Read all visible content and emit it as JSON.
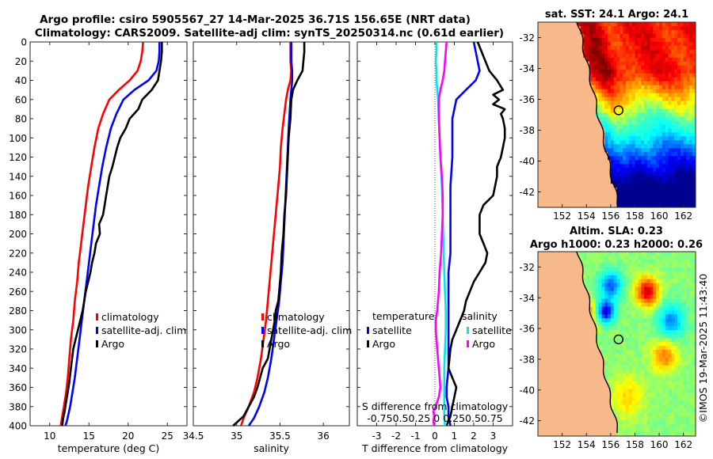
{
  "title": {
    "line1": "Argo profile: csiro 5905567_27 14-Mar-2025 36.71S 156.65E (NRT data)",
    "line2": "Climatology: CARS2009. Satellite-adj clim: synTS_20250314.nc (0.61d earlier)"
  },
  "side_label": "©IMOS 19-Mar-2025 11:43:40",
  "colors": {
    "climatology": "#ff0000",
    "satellite": "#0000ff",
    "argo": "#000000",
    "sat_salinity": "#00e5ee",
    "argo_salinity": "#ff00ff",
    "land": "#f7b98a"
  },
  "chart_data": [
    {
      "type": "line",
      "name": "temperature",
      "xlabel": "temperature (deg C)",
      "xlim": [
        7.5,
        27.5
      ],
      "xticks": [
        10,
        15,
        20,
        25
      ],
      "xtick_labels": [
        "10",
        "15",
        "20",
        "25"
      ],
      "ylim": [
        0,
        400
      ],
      "yticks": [
        0,
        20,
        40,
        60,
        80,
        100,
        120,
        140,
        160,
        180,
        200,
        220,
        240,
        260,
        280,
        300,
        320,
        340,
        360,
        380,
        400
      ],
      "legend": [
        "climatology",
        "satellite-adj. clim",
        "Argo"
      ],
      "series": [
        {
          "name": "climatology",
          "color": "#ff0000",
          "x": [
            21.9,
            21.8,
            21.6,
            21.2,
            20.2,
            18.8,
            17.6,
            16.8,
            16.2,
            15.7,
            15.3,
            14.9,
            14.6,
            14.3,
            14.0,
            13.7,
            13.5,
            13.2,
            13.0,
            12.7,
            12.5,
            12.3,
            12.1,
            11.8,
            11.6,
            11.4
          ],
          "y": [
            0,
            10,
            20,
            30,
            40,
            50,
            60,
            75,
            90,
            110,
            130,
            150,
            170,
            190,
            210,
            230,
            250,
            270,
            290,
            310,
            330,
            350,
            365,
            380,
            390,
            400
          ]
        },
        {
          "name": "satellite-adj. clim",
          "color": "#0000ff",
          "x": [
            24.0,
            24.0,
            23.9,
            23.6,
            22.6,
            20.8,
            19.4,
            18.5,
            17.8,
            17.2,
            16.7,
            16.3,
            15.9,
            15.6,
            15.3,
            15.0,
            14.7,
            14.4,
            14.1,
            13.8,
            13.5,
            13.2,
            12.9,
            12.6,
            12.2,
            12.0
          ],
          "y": [
            0,
            10,
            20,
            30,
            40,
            50,
            60,
            75,
            90,
            110,
            130,
            150,
            170,
            190,
            210,
            230,
            250,
            270,
            290,
            310,
            330,
            350,
            365,
            380,
            395,
            400
          ]
        },
        {
          "name": "Argo",
          "color": "#000000",
          "x": [
            24.3,
            24.3,
            24.2,
            24.0,
            23.8,
            23.0,
            21.8,
            21.3,
            20.2,
            19.7,
            19.0,
            18.6,
            18.3,
            18.0,
            17.6,
            17.4,
            17.2,
            17.0,
            16.8,
            16.3,
            16.4,
            15.9,
            15.7,
            15.4,
            15.2,
            14.9,
            14.6,
            14.4,
            14.2,
            13.9,
            13.6,
            13.3,
            13.0,
            12.7,
            12.5,
            12.3,
            12.1,
            11.9,
            11.7,
            11.6
          ],
          "y": [
            0,
            10,
            20,
            30,
            40,
            50,
            60,
            70,
            80,
            90,
            100,
            110,
            120,
            130,
            140,
            150,
            160,
            170,
            180,
            190,
            200,
            210,
            220,
            230,
            240,
            250,
            260,
            270,
            280,
            290,
            300,
            310,
            320,
            340,
            355,
            365,
            375,
            385,
            393,
            400
          ]
        }
      ]
    },
    {
      "type": "line",
      "name": "salinity",
      "xlabel": "salinity",
      "xlim": [
        34.5,
        36.3
      ],
      "xticks": [
        34.5,
        35,
        35.5,
        36
      ],
      "xtick_labels": [
        "34.5",
        "35",
        "35.5",
        "36"
      ],
      "ylim": [
        0,
        400
      ],
      "legend": [
        "climatology",
        "satellite-adj. clim",
        "Argo"
      ],
      "series": [
        {
          "name": "climatology",
          "color": "#ff0000",
          "x": [
            35.62,
            35.62,
            35.62,
            35.63,
            35.62,
            35.59,
            35.57,
            35.55,
            35.53,
            35.51,
            35.5,
            35.48,
            35.46,
            35.44,
            35.42,
            35.4,
            35.38,
            35.36,
            35.34,
            35.31,
            35.28,
            35.24,
            35.2,
            35.14,
            35.08,
            35.05
          ],
          "y": [
            0,
            10,
            20,
            30,
            40,
            50,
            60,
            75,
            90,
            110,
            130,
            150,
            170,
            190,
            210,
            230,
            250,
            270,
            290,
            310,
            330,
            350,
            365,
            380,
            392,
            400
          ]
        },
        {
          "name": "satellite-adj. clim",
          "color": "#0000ff",
          "x": [
            35.63,
            35.63,
            35.63,
            35.64,
            35.64,
            35.63,
            35.62,
            35.61,
            35.6,
            35.59,
            35.58,
            35.57,
            35.56,
            35.55,
            35.54,
            35.53,
            35.51,
            35.49,
            35.46,
            35.43,
            35.4,
            35.36,
            35.32,
            35.26,
            35.2,
            35.14
          ],
          "y": [
            0,
            10,
            20,
            30,
            40,
            50,
            60,
            75,
            90,
            110,
            130,
            150,
            170,
            190,
            210,
            230,
            250,
            270,
            290,
            310,
            330,
            350,
            365,
            380,
            392,
            400
          ]
        },
        {
          "name": "Argo",
          "color": "#000000",
          "x": [
            35.78,
            35.78,
            35.77,
            35.76,
            35.7,
            35.65,
            35.63,
            35.62,
            35.6,
            35.59,
            35.58,
            35.57,
            35.55,
            35.54,
            35.52,
            35.51,
            35.5,
            35.49,
            35.48,
            35.45,
            35.44,
            35.42,
            35.4,
            35.38,
            35.36,
            35.3,
            35.27,
            35.24,
            35.2,
            35.14,
            35.08,
            35.02,
            34.96
          ],
          "y": [
            0,
            10,
            20,
            30,
            40,
            50,
            60,
            80,
            100,
            120,
            140,
            160,
            180,
            200,
            220,
            240,
            250,
            260,
            270,
            280,
            290,
            300,
            310,
            320,
            330,
            340,
            350,
            360,
            370,
            380,
            390,
            395,
            400
          ]
        }
      ]
    },
    {
      "type": "line",
      "name": "difference from climatology",
      "xlabel": "T difference from climatology",
      "xlim": [
        -4,
        4
      ],
      "xticks": [
        -3,
        -2,
        -1,
        0,
        1,
        2,
        3
      ],
      "xtick_labels": [
        "-3",
        "-2",
        "-1",
        "0",
        "1",
        "2",
        "3"
      ],
      "secondary_xlabel": "S difference from climatology",
      "secondary_xtick_labels": "-0.750.50.25 0 0.250.50.75",
      "ylim": [
        0,
        400
      ],
      "legend_temperature_title": "temperature",
      "legend_salinity_title": "salinity",
      "legend_temperature": [
        "satellite",
        "Argo"
      ],
      "legend_salinity": [
        "satellite",
        "Argo"
      ],
      "series": [
        {
          "name": "T satellite",
          "color": "#0000ff",
          "x": [
            2.0,
            2.1,
            2.2,
            2.3,
            2.1,
            1.6,
            1.1,
            0.9,
            0.9,
            0.9,
            0.8,
            0.8,
            0.8,
            0.8,
            0.7,
            0.7,
            0.7,
            0.7,
            0.7,
            0.7,
            0.6,
            0.6,
            0.7,
            0.7,
            0.8
          ],
          "y": [
            0,
            10,
            20,
            30,
            40,
            50,
            60,
            80,
            100,
            120,
            150,
            180,
            200,
            220,
            240,
            260,
            280,
            300,
            320,
            340,
            360,
            370,
            380,
            390,
            400
          ]
        },
        {
          "name": "T Argo",
          "color": "#000000",
          "x": [
            2.2,
            2.4,
            2.6,
            2.8,
            3.2,
            3.5,
            3.0,
            3.3,
            3.0,
            3.6,
            3.4,
            3.5,
            3.6,
            3.6,
            3.5,
            3.4,
            3.2,
            3.2,
            3.1,
            3.0,
            2.5,
            2.3,
            2.3,
            2.3,
            2.5,
            2.7,
            2.6,
            2.3,
            2.0,
            1.8,
            1.6,
            1.5,
            1.3,
            1.1,
            0.9,
            0.8,
            0.7,
            0.9,
            1.1,
            1.0,
            0.9,
            0.8,
            0.6
          ],
          "y": [
            0,
            10,
            20,
            30,
            40,
            50,
            55,
            60,
            65,
            70,
            75,
            80,
            90,
            100,
            110,
            120,
            130,
            140,
            150,
            160,
            170,
            180,
            190,
            200,
            210,
            220,
            230,
            240,
            250,
            260,
            270,
            280,
            290,
            300,
            310,
            320,
            340,
            350,
            360,
            370,
            380,
            390,
            400
          ]
        },
        {
          "name": "S satellite",
          "color": "#00e5ee",
          "x": [
            0.02,
            0.02,
            0.01,
            0.02,
            0.02,
            0.03,
            0.04,
            0.05,
            0.06,
            0.07,
            0.09,
            0.1,
            0.11,
            0.12,
            0.13,
            0.14,
            0.14,
            0.13,
            0.12,
            0.12,
            0.12,
            0.12,
            0.13
          ],
          "y": [
            0,
            10,
            20,
            30,
            40,
            50,
            60,
            80,
            100,
            120,
            150,
            180,
            210,
            240,
            260,
            280,
            300,
            320,
            340,
            360,
            380,
            390,
            400
          ]
        },
        {
          "name": "S Argo",
          "color": "#ff00ff",
          "x": [
            0.15,
            0.14,
            0.13,
            0.12,
            0.1,
            0.07,
            0.05,
            0.05,
            0.06,
            0.07,
            0.09,
            0.1,
            0.1,
            0.09,
            0.08,
            0.06,
            0.05,
            0.04,
            0.03,
            0.01,
            0.01,
            0.02,
            0.03,
            0.04,
            0.05,
            0.06,
            0.07,
            0.06,
            0.05,
            0.03,
            0.01,
            -0.02,
            -0.01,
            -0.02,
            -0.01
          ],
          "y": [
            0,
            10,
            20,
            30,
            40,
            50,
            60,
            80,
            100,
            120,
            140,
            160,
            180,
            200,
            220,
            240,
            260,
            270,
            280,
            290,
            300,
            310,
            320,
            330,
            340,
            350,
            360,
            365,
            370,
            375,
            380,
            385,
            390,
            395,
            400
          ]
        }
      ]
    },
    {
      "type": "heatmap",
      "name": "sat SST map",
      "title": "sat. SST: 24.1 Argo: 24.1",
      "xlim": [
        150,
        163
      ],
      "ylim": [
        -43,
        -31
      ],
      "xticks": [
        152,
        154,
        156,
        158,
        160,
        162
      ],
      "yticks": [
        -32,
        -34,
        -36,
        -38,
        -40,
        -42
      ],
      "xtick_labels": [
        "152",
        "154",
        "156",
        "158",
        "160",
        "162"
      ],
      "ytick_labels": [
        "-32",
        "-34",
        "-36",
        "-38",
        "-40",
        "-42"
      ],
      "marker": {
        "lon": 156.65,
        "lat": -36.71
      },
      "value_range": [
        16,
        26
      ]
    },
    {
      "type": "heatmap",
      "name": "altimetry SLA map",
      "title_line1": "Altim. SLA: 0.23",
      "title_line2": "Argo h1000: 0.23 h2000: 0.26",
      "xlim": [
        150,
        163
      ],
      "ylim": [
        -43,
        -31
      ],
      "xticks": [
        152,
        154,
        156,
        158,
        160,
        162
      ],
      "yticks": [
        -32,
        -34,
        -36,
        -38,
        -40,
        -42
      ],
      "xtick_labels": [
        "152",
        "154",
        "156",
        "158",
        "160",
        "162"
      ],
      "ytick_labels": [
        "-32",
        "-34",
        "-36",
        "-38",
        "-40",
        "-42"
      ],
      "marker": {
        "lon": 156.65,
        "lat": -36.71
      },
      "value_range": [
        -0.6,
        0.6
      ]
    }
  ]
}
